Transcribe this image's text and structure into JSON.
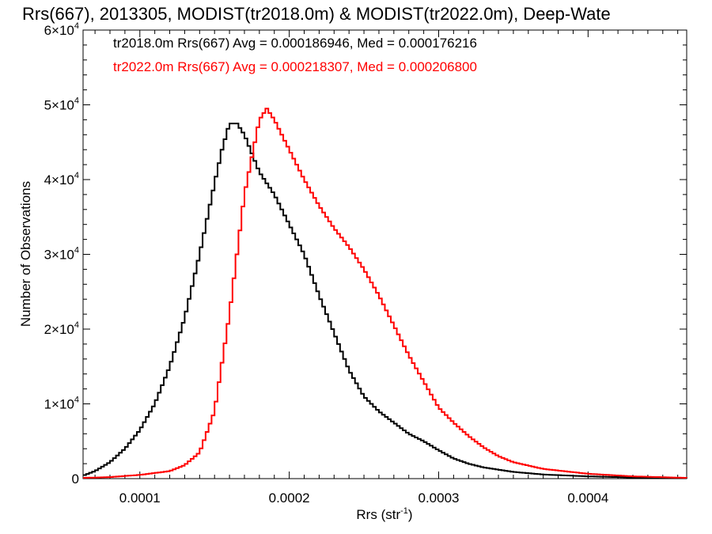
{
  "chart_data": {
    "type": "line",
    "title": "Rrs(667), 2013305, MODIST(tr2018.0m) & MODIST(tr2022.0m), Deep-Wate",
    "xlabel_main": "Rrs (str",
    "xlabel_sup": "-1",
    "xlabel_close": ")",
    "ylabel": "Number of Observations",
    "xlim": [
      6.2e-05,
      0.000466
    ],
    "ylim": [
      0,
      60000
    ],
    "x_ticks": [
      {
        "value": 0.0001,
        "label": "0.0001"
      },
      {
        "value": 0.0002,
        "label": "0.0002"
      },
      {
        "value": 0.0003,
        "label": "0.0003"
      },
      {
        "value": 0.0004,
        "label": "0.0004"
      }
    ],
    "y_ticks": [
      {
        "value": 0,
        "mant": "0",
        "exp": ""
      },
      {
        "value": 10000,
        "mant": "1×10",
        "exp": "4"
      },
      {
        "value": 20000,
        "mant": "2×10",
        "exp": "4"
      },
      {
        "value": 30000,
        "mant": "3×10",
        "exp": "4"
      },
      {
        "value": 40000,
        "mant": "4×10",
        "exp": "4"
      },
      {
        "value": 50000,
        "mant": "5×10",
        "exp": "4"
      },
      {
        "value": 60000,
        "mant": "6×10",
        "exp": "4"
      }
    ],
    "grid": false,
    "legend_position": "top-left",
    "series": [
      {
        "name": "tr2018.0m",
        "color": "#000000",
        "label": "tr2018.0m Rrs(667) Avg = 0.000186946, Med = 0.000176216",
        "points": [
          [
            6.2e-05,
            400
          ],
          [
            7e-05,
            1000
          ],
          [
            8e-05,
            2200
          ],
          [
            9e-05,
            4000
          ],
          [
            0.0001,
            6500
          ],
          [
            0.00011,
            10000
          ],
          [
            0.00012,
            15000
          ],
          [
            0.00013,
            21500
          ],
          [
            0.00014,
            30000
          ],
          [
            0.00015,
            39500
          ],
          [
            0.000155,
            44000
          ],
          [
            0.00016,
            47500
          ],
          [
            0.000165,
            47500
          ],
          [
            0.00017,
            46000
          ],
          [
            0.00018,
            41000
          ],
          [
            0.00019,
            38000
          ],
          [
            0.0002,
            34000
          ],
          [
            0.00021,
            30000
          ],
          [
            0.00022,
            24500
          ],
          [
            0.00023,
            19500
          ],
          [
            0.00024,
            14500
          ],
          [
            0.00025,
            11000
          ],
          [
            0.00026,
            9000
          ],
          [
            0.00027,
            7500
          ],
          [
            0.00028,
            6000
          ],
          [
            0.00029,
            5000
          ],
          [
            0.0003,
            3800
          ],
          [
            0.00031,
            2700
          ],
          [
            0.00032,
            2000
          ],
          [
            0.00033,
            1500
          ],
          [
            0.00035,
            900
          ],
          [
            0.00037,
            550
          ],
          [
            0.0004,
            300
          ],
          [
            0.00043,
            150
          ],
          [
            0.000466,
            50
          ]
        ]
      },
      {
        "name": "tr2022.0m",
        "color": "#ff0000",
        "label": "tr2022.0m Rrs(667) Avg = 0.000218307, Med = 0.000206800",
        "points": [
          [
            6.2e-05,
            100
          ],
          [
            8e-05,
            200
          ],
          [
            0.0001,
            500
          ],
          [
            0.00012,
            1000
          ],
          [
            0.00013,
            1800
          ],
          [
            0.00014,
            3500
          ],
          [
            0.00015,
            9000
          ],
          [
            0.00016,
            22000
          ],
          [
            0.00017,
            38000
          ],
          [
            0.00018,
            48000
          ],
          [
            0.000185,
            49500
          ],
          [
            0.00019,
            48000
          ],
          [
            0.0002,
            44000
          ],
          [
            0.00021,
            40000
          ],
          [
            0.00022,
            36500
          ],
          [
            0.00023,
            33500
          ],
          [
            0.00024,
            31000
          ],
          [
            0.00025,
            28000
          ],
          [
            0.00026,
            24500
          ],
          [
            0.00027,
            20500
          ],
          [
            0.00028,
            16500
          ],
          [
            0.00029,
            13000
          ],
          [
            0.0003,
            9500
          ],
          [
            0.00031,
            7500
          ],
          [
            0.00032,
            5700
          ],
          [
            0.00033,
            4200
          ],
          [
            0.00034,
            3000
          ],
          [
            0.00035,
            2200
          ],
          [
            0.00037,
            1300
          ],
          [
            0.0004,
            650
          ],
          [
            0.00043,
            300
          ],
          [
            0.000466,
            100
          ]
        ]
      }
    ]
  }
}
